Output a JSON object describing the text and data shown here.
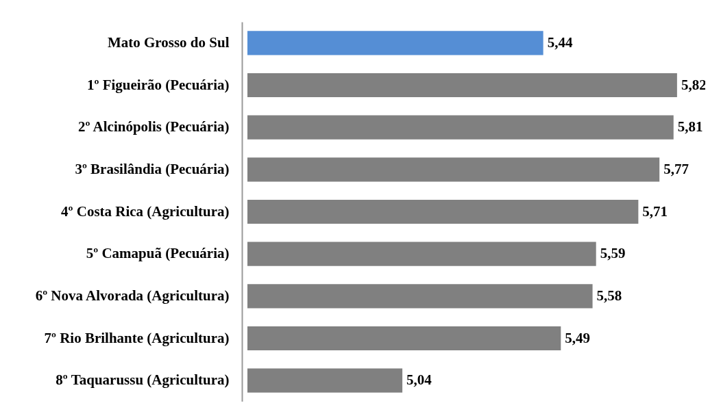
{
  "chart_data": {
    "type": "bar",
    "orientation": "horizontal",
    "categories": [
      "Mato Grosso do Sul",
      "1º Figueirão (Pecuária)",
      "2º Alcinópolis (Pecuária)",
      "3º Brasilândia (Pecuária)",
      "4º Costa Rica (Agricultura)",
      "5º Camapuã (Pecuária)",
      "6º Nova Alvorada (Agricultura)",
      "7º Rio Brilhante (Agricultura)",
      "8º Taquarussu (Agricultura)"
    ],
    "values": [
      5.44,
      5.82,
      5.81,
      5.77,
      5.71,
      5.59,
      5.58,
      5.49,
      5.04
    ],
    "value_labels": [
      "5,44",
      "5,82",
      "5,81",
      "5,77",
      "5,71",
      "5,59",
      "5,58",
      "5,49",
      "5,04"
    ],
    "colors": [
      "#558ed5",
      "#808080",
      "#808080",
      "#808080",
      "#808080",
      "#808080",
      "#808080",
      "#808080",
      "#808080"
    ],
    "xlim": [
      4.6,
      5.9
    ],
    "tick_labels": "y"
  }
}
